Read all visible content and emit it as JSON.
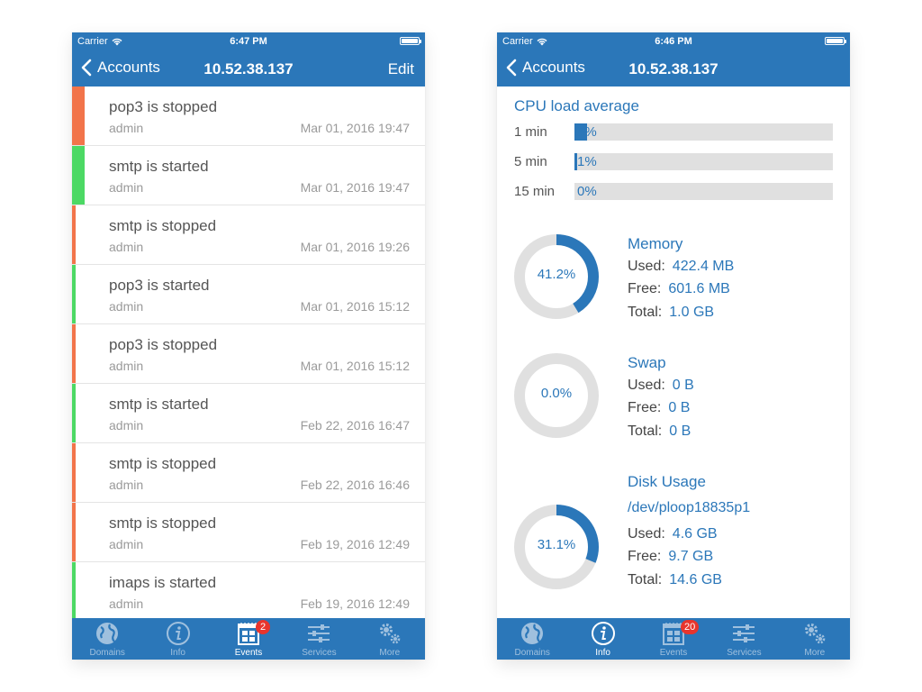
{
  "colors": {
    "accent": "#2b77b9",
    "stopped": "#f2744a",
    "started": "#4cd964",
    "tab_inactive": "#9fc0de",
    "badge": "#e8352d"
  },
  "left_phone": {
    "status": {
      "carrier": "Carrier",
      "time": "6:47 PM"
    },
    "nav": {
      "back_label": "Accounts",
      "title": "10.52.38.137",
      "edit_label": "Edit"
    },
    "events": [
      {
        "title": "pop3 is stopped",
        "user": "admin",
        "date": "Mar 01, 2016 19:47",
        "status": "stopped"
      },
      {
        "title": "smtp is started",
        "user": "admin",
        "date": "Mar 01, 2016 19:47",
        "status": "started"
      },
      {
        "title": "smtp is stopped",
        "user": "admin",
        "date": "Mar 01, 2016 19:26",
        "status": "stopped"
      },
      {
        "title": "pop3 is started",
        "user": "admin",
        "date": "Mar 01, 2016 15:12",
        "status": "started"
      },
      {
        "title": "pop3 is stopped",
        "user": "admin",
        "date": "Mar 01, 2016 15:12",
        "status": "stopped"
      },
      {
        "title": "smtp is started",
        "user": "admin",
        "date": "Feb 22, 2016 16:47",
        "status": "started"
      },
      {
        "title": "smtp is stopped",
        "user": "admin",
        "date": "Feb 22, 2016 16:46",
        "status": "stopped"
      },
      {
        "title": "smtp is stopped",
        "user": "admin",
        "date": "Feb 19, 2016 12:49",
        "status": "stopped"
      },
      {
        "title": "imaps is started",
        "user": "admin",
        "date": "Feb 19, 2016 12:49",
        "status": "started"
      }
    ],
    "tabs": [
      {
        "label": "Domains",
        "icon": "globe-icon"
      },
      {
        "label": "Info",
        "icon": "info-icon"
      },
      {
        "label": "Events",
        "icon": "calendar-icon",
        "badge": "2",
        "active": true
      },
      {
        "label": "Services",
        "icon": "sliders-icon"
      },
      {
        "label": "More",
        "icon": "gears-icon"
      }
    ]
  },
  "right_phone": {
    "status": {
      "carrier": "Carrier",
      "time": "6:46 PM"
    },
    "nav": {
      "back_label": "Accounts",
      "title": "10.52.38.137"
    },
    "cpu": {
      "title": "CPU load average",
      "rows": [
        {
          "label": "1 min",
          "value_text": "5%",
          "fraction": 0.05
        },
        {
          "label": "5 min",
          "value_text": "1%",
          "fraction": 0.01
        },
        {
          "label": "15 min",
          "value_text": "0%",
          "fraction": 0.0
        }
      ]
    },
    "memory": {
      "title": "Memory",
      "percent_text": "41.2%",
      "fraction": 0.412,
      "used_label": "Used:",
      "used": "422.4 MB",
      "free_label": "Free:",
      "free": "601.6 MB",
      "total_label": "Total:",
      "total": "1.0 GB"
    },
    "swap": {
      "title": "Swap",
      "percent_text": "0.0%",
      "fraction": 0.0,
      "used_label": "Used:",
      "used": "0 B",
      "free_label": "Free:",
      "free": "0 B",
      "total_label": "Total:",
      "total": "0 B"
    },
    "disk": {
      "title": "Disk Usage",
      "device": "/dev/ploop18835p1",
      "percent_text": "31.1%",
      "fraction": 0.311,
      "used_label": "Used:",
      "used": "4.6 GB",
      "free_label": "Free:",
      "free": "9.7 GB",
      "total_label": "Total:",
      "total": "14.6 GB"
    },
    "tabs": [
      {
        "label": "Domains",
        "icon": "globe-icon"
      },
      {
        "label": "Info",
        "icon": "info-icon",
        "active": true
      },
      {
        "label": "Events",
        "icon": "calendar-icon",
        "badge": "20"
      },
      {
        "label": "Services",
        "icon": "sliders-icon"
      },
      {
        "label": "More",
        "icon": "gears-icon"
      }
    ]
  }
}
